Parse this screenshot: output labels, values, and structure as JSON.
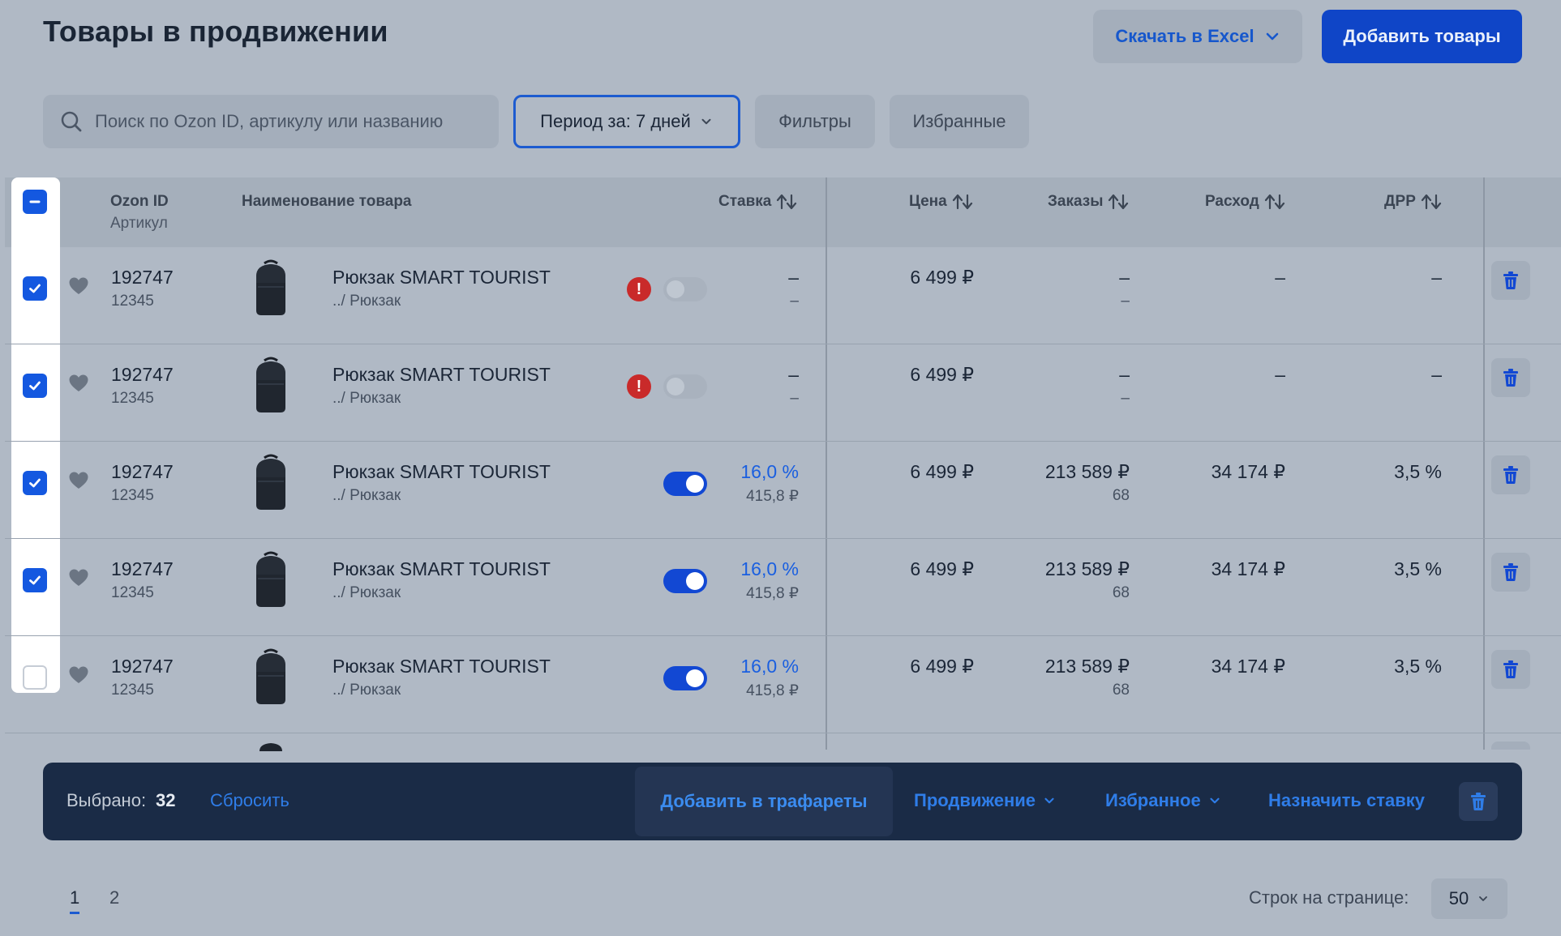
{
  "header": {
    "title": "Товары в продвижении",
    "download_label": "Скачать в Excel",
    "add_label": "Добавить товары"
  },
  "toolbar": {
    "search_placeholder": "Поиск по Ozon ID, артикулу или названию",
    "period_label": "Период за: 7 дней",
    "filters_label": "Фильтры",
    "favorites_label": "Избранные"
  },
  "table": {
    "columns": {
      "ozon_id": "Ozon ID",
      "article": "Артикул",
      "name": "Наименование товара",
      "bid": "Ставка",
      "price": "Цена",
      "orders": "Заказы",
      "spend": "Расход",
      "drr": "ДРР"
    },
    "rows": [
      {
        "checked": true,
        "ozon_id": "192747",
        "article": "12345",
        "name": "Рюкзак SMART TOURIST",
        "category": "../ Рюкзак",
        "warning": true,
        "active": false,
        "bid": "–",
        "bid_sub": "–",
        "price": "6 499 ₽",
        "orders": "–",
        "orders_sub": "–",
        "spend": "–",
        "drr": "–"
      },
      {
        "checked": true,
        "ozon_id": "192747",
        "article": "12345",
        "name": "Рюкзак SMART TOURIST",
        "category": "../ Рюкзак",
        "warning": true,
        "active": false,
        "bid": "–",
        "bid_sub": "–",
        "price": "6 499 ₽",
        "orders": "–",
        "orders_sub": "–",
        "spend": "–",
        "drr": "–"
      },
      {
        "checked": true,
        "ozon_id": "192747",
        "article": "12345",
        "name": "Рюкзак SMART TOURIST",
        "category": "../ Рюкзак",
        "warning": false,
        "active": true,
        "bid": "16,0 %",
        "bid_sub": "415,8 ₽",
        "price": "6 499 ₽",
        "orders": "213 589 ₽",
        "orders_sub": "68",
        "spend": "34 174 ₽",
        "drr": "3,5 %"
      },
      {
        "checked": true,
        "ozon_id": "192747",
        "article": "12345",
        "name": "Рюкзак SMART TOURIST",
        "category": "../ Рюкзак",
        "warning": false,
        "active": true,
        "bid": "16,0 %",
        "bid_sub": "415,8 ₽",
        "price": "6 499 ₽",
        "orders": "213 589 ₽",
        "orders_sub": "68",
        "spend": "34 174 ₽",
        "drr": "3,5 %"
      },
      {
        "checked": false,
        "ozon_id": "192747",
        "article": "12345",
        "name": "Рюкзак SMART TOURIST",
        "category": "../ Рюкзак",
        "warning": false,
        "active": true,
        "bid": "16,0 %",
        "bid_sub": "415,8 ₽",
        "price": "6 499 ₽",
        "orders": "213 589 ₽",
        "orders_sub": "68",
        "spend": "34 174 ₽",
        "drr": "3,5 %"
      }
    ]
  },
  "actionbar": {
    "selected_label": "Выбрано:",
    "selected_count": "32",
    "reset_label": "Сбросить",
    "add_templates_label": "Добавить в трафареты",
    "promotion_label": "Продвижение",
    "favorite_label": "Избранное",
    "set_bid_label": "Назначить ставку"
  },
  "pagination": {
    "pages": [
      "1",
      "2"
    ],
    "current": "1",
    "rows_label": "Строк на странице:",
    "rows_value": "50"
  },
  "icons": {
    "search": "search-icon",
    "chevron": "chevron-down-icon",
    "sort": "sort-icon",
    "heart": "heart-icon",
    "warning": "warning-icon",
    "trash": "trash-icon",
    "check": "check-icon",
    "minus": "minus-icon",
    "backpack": "backpack-image"
  },
  "colors": {
    "background": "#b0b9c5",
    "accent": "#1458e0",
    "primary_button": "#0f45c7",
    "action_bar": "#1a2b46",
    "warning": "#c92a2a"
  }
}
